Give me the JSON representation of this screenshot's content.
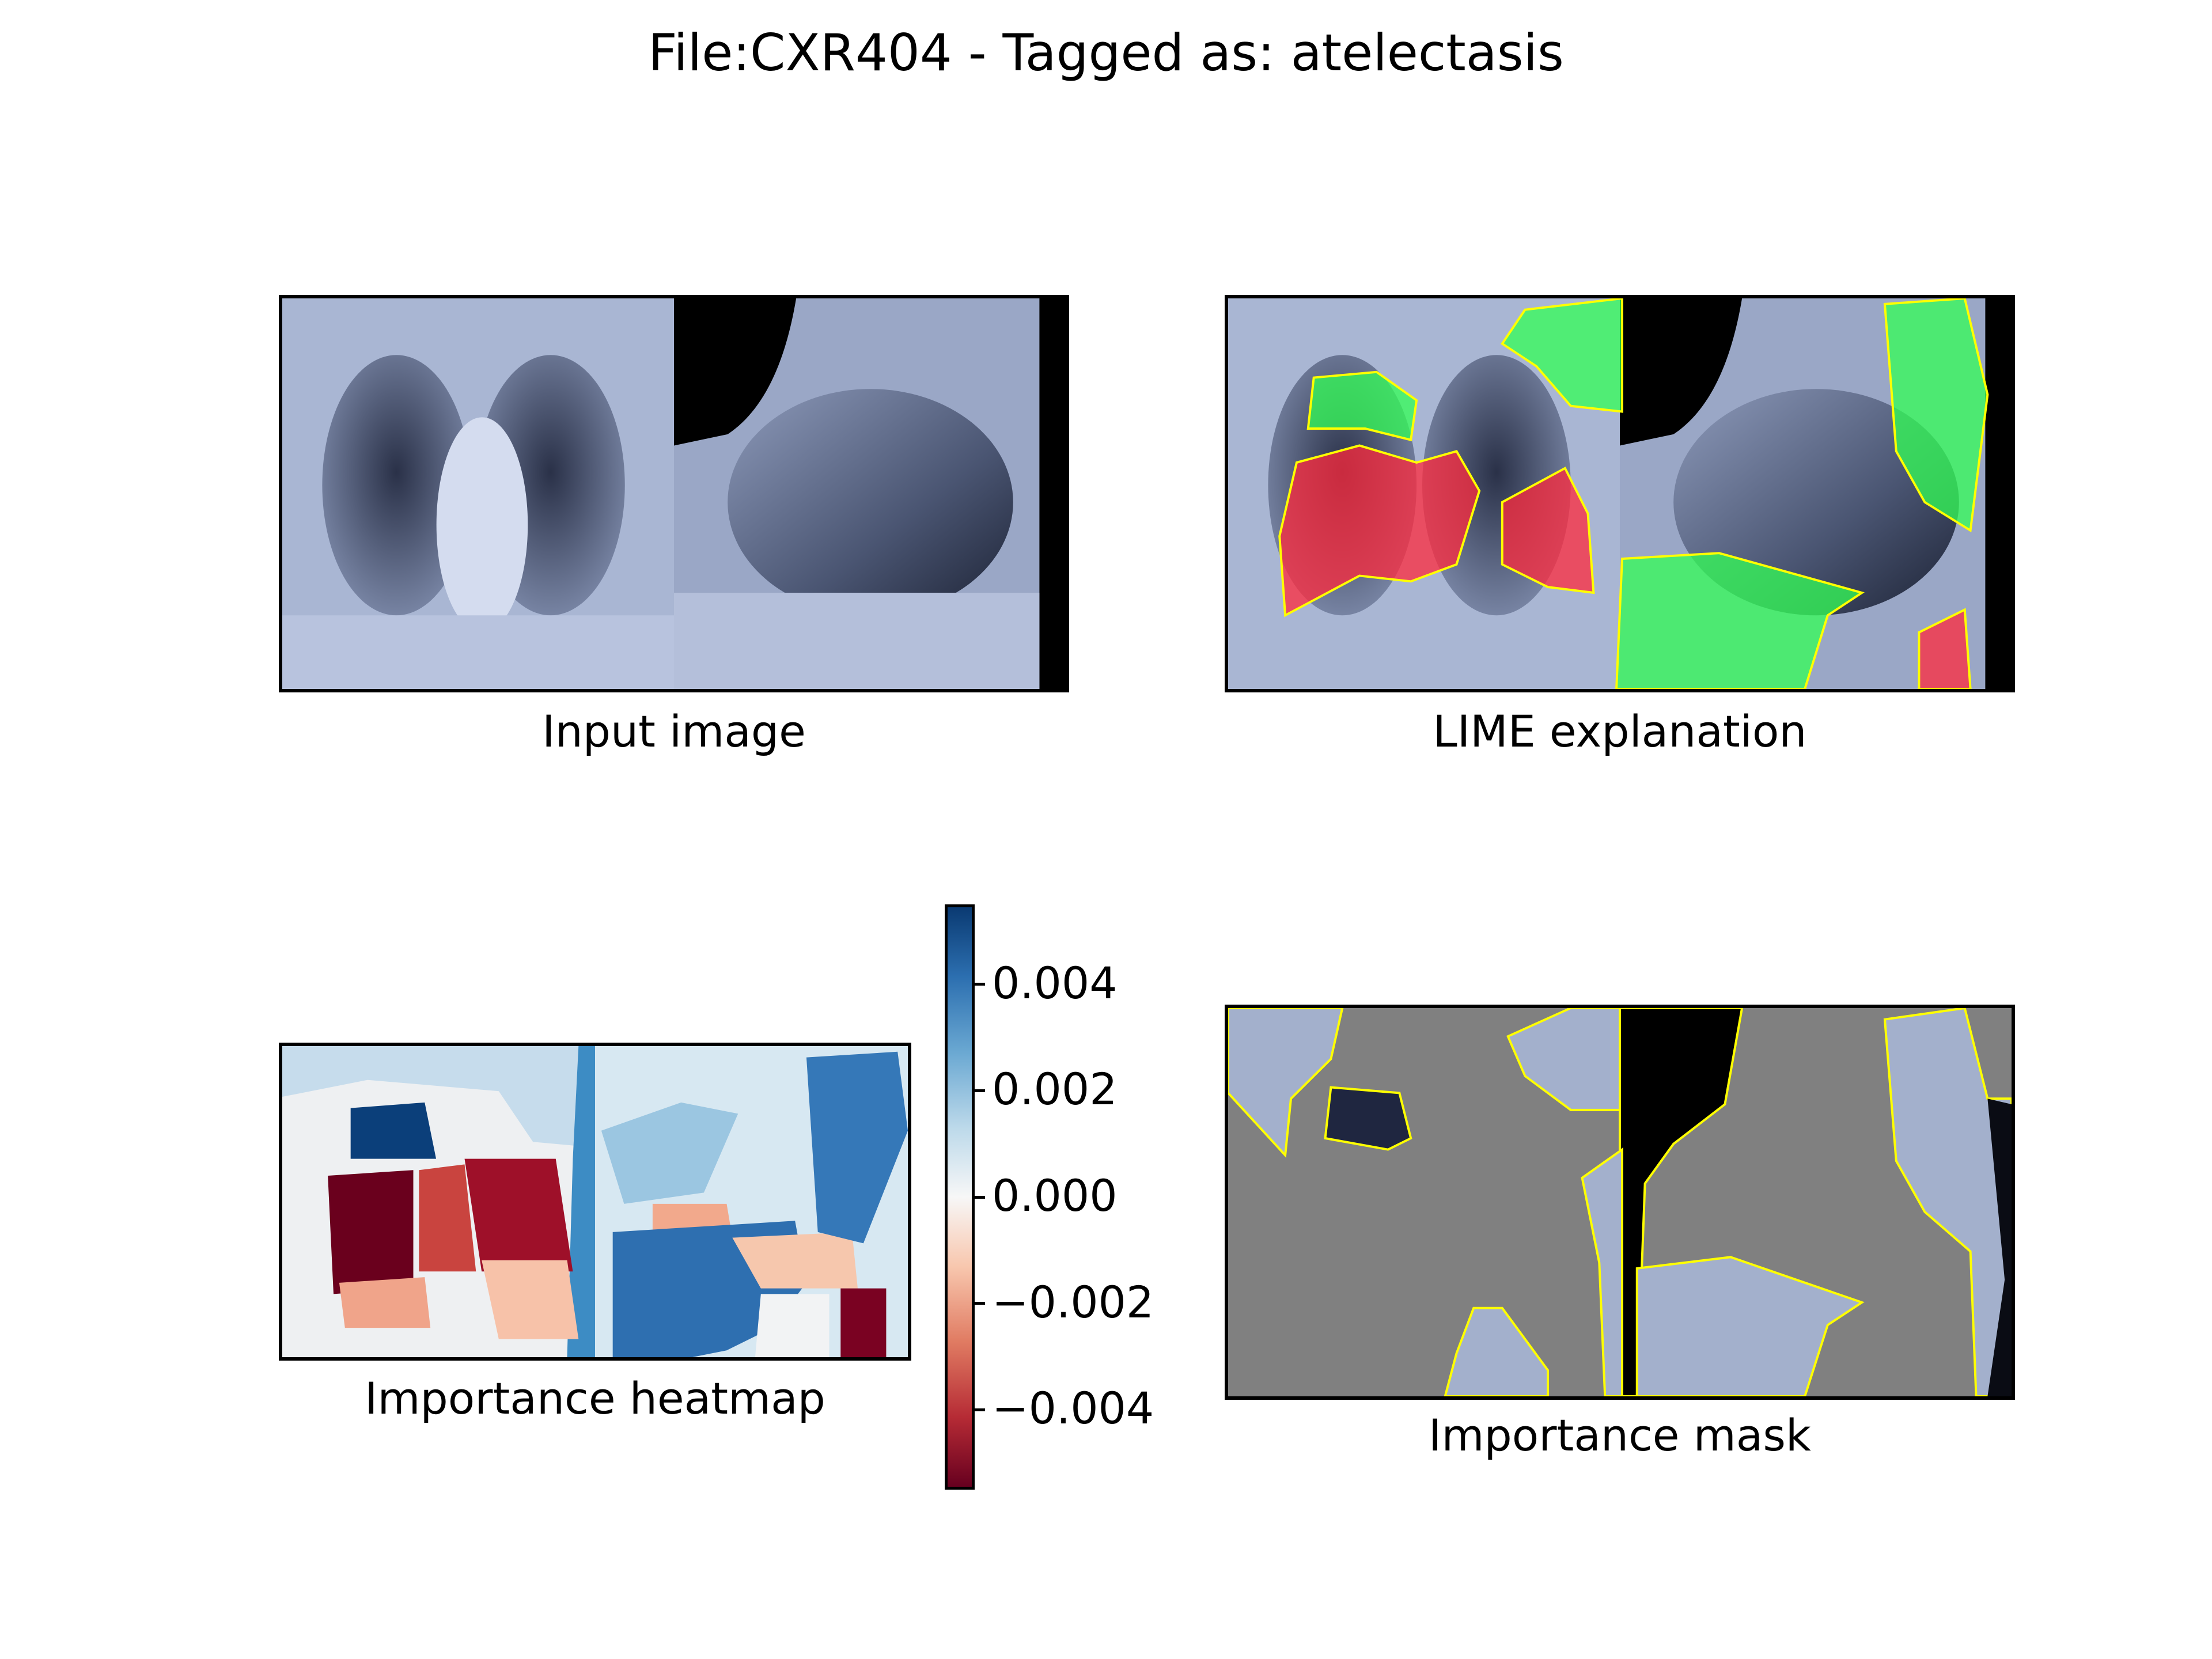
{
  "title": "File:CXR404 - Tagged as: atelectasis",
  "panels": {
    "input": {
      "caption": "Input image"
    },
    "lime": {
      "caption": "LIME explanation"
    },
    "heatmap": {
      "caption": "Importance heatmap"
    },
    "mask": {
      "caption": "Importance mask"
    }
  },
  "colors": {
    "lime_positive": "#33ff55",
    "lime_negative": "#ff2a3c",
    "boundary": "#ffff00",
    "mask_gray": "#808080",
    "xray_tint": "#a9b6d3"
  },
  "chart_data": {
    "type": "heatmap",
    "colormap": "RdBu",
    "colorbar": {
      "range": [
        -0.0055,
        0.0055
      ],
      "ticks": [
        0.004,
        0.002,
        0.0,
        -0.002,
        -0.004
      ],
      "tick_labels": [
        "0.004",
        "0.002",
        "0.000",
        "−0.002",
        "−0.004"
      ]
    }
  }
}
